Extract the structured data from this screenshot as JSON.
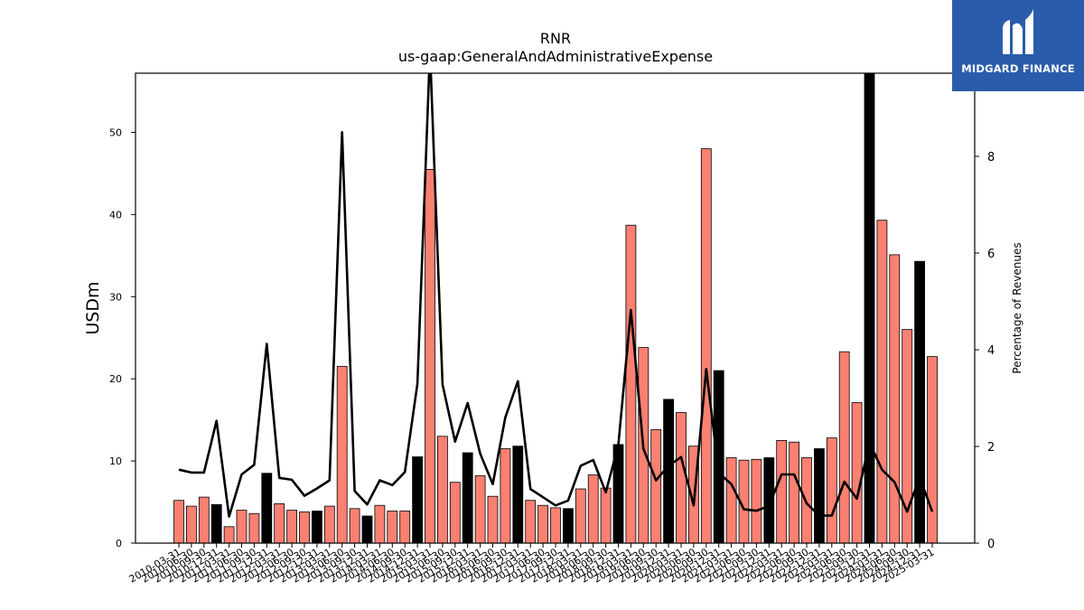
{
  "logo": {
    "text": "MIDGARD FINANCE"
  },
  "chart_data": {
    "type": "bar",
    "title": "RNR",
    "subtitle": "us-gaap:GeneralAndAdministrativeExpense",
    "ylabel": "USDm",
    "ylabel_right": "Percentage of Revenues",
    "ylim": [
      0,
      57.2
    ],
    "ylim_right": [
      0,
      9.72
    ],
    "yticks": [
      0,
      10,
      20,
      30,
      40,
      50
    ],
    "yticks_right": [
      0,
      2,
      4,
      6,
      8
    ],
    "grid": false,
    "colors": {
      "quarter_bar": "#fa8072",
      "year_bar": "#000000",
      "line": "#000000"
    },
    "categories": [
      "2010-03-31",
      "2010-06-30",
      "2010-09-30",
      "2010-12-31",
      "2011-03-31",
      "2011-06-30",
      "2011-09-30",
      "2011-12-31",
      "2012-03-31",
      "2012-06-30",
      "2012-09-30",
      "2012-12-31",
      "2013-03-31",
      "2013-06-30",
      "2013-09-30",
      "2013-12-31",
      "2014-03-31",
      "2014-06-30",
      "2014-09-30",
      "2014-12-31",
      "2015-03-31",
      "2015-06-30",
      "2015-09-30",
      "2015-12-31",
      "2016-03-31",
      "2016-06-30",
      "2016-09-30",
      "2016-12-31",
      "2017-03-31",
      "2017-06-30",
      "2017-09-30",
      "2017-12-31",
      "2018-03-31",
      "2018-06-30",
      "2018-09-30",
      "2018-12-31",
      "2019-03-31",
      "2019-06-30",
      "2019-09-30",
      "2019-12-31",
      "2020-03-31",
      "2020-06-30",
      "2020-09-30",
      "2020-12-31",
      "2021-03-31",
      "2021-06-30",
      "2021-09-30",
      "2021-12-31",
      "2022-03-31",
      "2022-06-30",
      "2022-09-30",
      "2022-12-31",
      "2023-03-31",
      "2023-06-30",
      "2023-09-30",
      "2023-12-31",
      "2024-03-31",
      "2024-06-30",
      "2024-09-30",
      "2024-12-31",
      "2025-03-31"
    ],
    "xtick_labels": [
      "2010-03-31",
      "2010-06-30",
      "2010-09-30",
      "2010-12-31",
      "2011-03-31",
      "2011-06-30",
      "2011-09-30",
      "2011-12-31",
      "2012-03-31",
      "2012-06-30",
      "2012-09-30",
      "2012-12-31",
      "2013-03-31",
      "2013-06-30",
      "2013-09-30",
      "2013-12-31",
      "2014-03-31",
      "2014-06-30",
      "2014-09-30",
      "2014-12-31",
      "2015-03-31",
      "2015-06-30",
      "2015-09-30",
      "2015-12-31",
      "2016-03-31",
      "2016-06-30",
      "2016-09-30",
      "2016-12-31",
      "2017-03-31",
      "2017-06-30",
      "2017-09-30",
      "2017-12-31",
      "2018-03-31",
      "2018-06-30",
      "2018-09-30",
      "2018-12-31",
      "2019-03-31",
      "2019-06-30",
      "2019-09-30",
      "2019-12-31",
      "2020-03-31",
      "2020-06-30",
      "2020-09-30",
      "2020-12-31",
      "2021-03-31",
      "2021-06-30",
      "2021-09-30",
      "2021-12-31",
      "2022-03-31",
      "2022-06-30",
      "2022-09-30",
      "2022-12-31",
      "2023-03-31",
      "2023-06-30",
      "2023-09-30",
      "2023-12-31",
      "2024-03-31",
      "2024-06-30",
      "2024-09-30",
      "2024-12-31",
      "2025-03-31"
    ],
    "series": [
      {
        "type": "bar",
        "values": [
          5.2,
          4.5,
          5.6,
          4.7,
          2.0,
          4.0,
          3.6,
          8.5,
          4.8,
          4.0,
          3.8,
          3.9,
          4.5,
          21.5,
          4.2,
          3.3,
          4.6,
          3.9,
          3.9,
          10.5,
          45.5,
          13.0,
          7.4,
          11.0,
          8.2,
          5.7,
          11.5,
          11.8,
          5.2,
          4.6,
          4.3,
          4.2,
          6.6,
          8.3,
          6.7,
          12.0,
          38.7,
          23.8,
          13.8,
          17.5,
          15.9,
          11.8,
          48.0,
          21.0,
          10.4,
          10.1,
          10.2,
          10.4,
          12.5,
          12.3,
          10.4,
          11.5,
          12.8,
          23.3,
          17.1,
          57.2,
          39.3,
          35.1,
          26.0,
          34.3,
          22.7
        ]
      },
      {
        "type": "line",
        "axis": "right",
        "values": [
          1.52,
          1.46,
          1.46,
          2.53,
          0.55,
          1.42,
          1.62,
          4.12,
          1.35,
          1.31,
          0.98,
          1.13,
          1.3,
          8.5,
          1.08,
          0.8,
          1.3,
          1.2,
          1.47,
          3.3,
          10.2,
          3.28,
          2.1,
          2.9,
          1.85,
          1.22,
          2.6,
          3.35,
          1.12,
          0.95,
          0.78,
          0.88,
          1.6,
          1.72,
          1.05,
          2.03,
          4.82,
          1.95,
          1.3,
          1.6,
          1.78,
          0.78,
          3.6,
          1.45,
          1.22,
          0.7,
          0.67,
          0.77,
          1.42,
          1.42,
          0.82,
          0.57,
          0.57,
          1.27,
          0.92,
          2.08,
          1.52,
          1.26,
          0.65,
          1.36,
          0.65
        ]
      }
    ]
  }
}
